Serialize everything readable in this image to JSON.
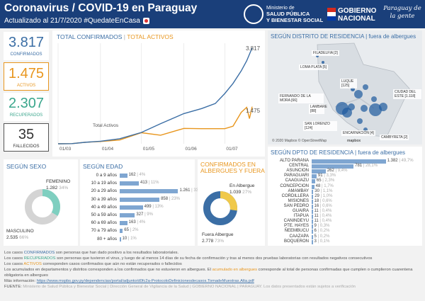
{
  "header": {
    "title": "Coronavirus / COVID-19 en Paraguay",
    "updated": "Actualizado al 21/7/2020",
    "hashtag": "#QuedateEnCasa",
    "ministry_small": "Ministerio de",
    "ministry": "SALUD PÚBLICA",
    "ministry2": "Y BIENESTAR SOCIAL",
    "gov": "GOBIERNO",
    "gov2": "NACIONAL",
    "slogan": "Paraguay de la gente",
    "flag_colors": [
      "#d52b1e",
      "#ffffff",
      "#0038a8"
    ]
  },
  "kpis": [
    {
      "value": "3.817",
      "label": "CONFIRMADOS",
      "color": "#3b6ea5"
    },
    {
      "value": "1.475",
      "label": "ACTIVOS",
      "color": "#e8961e"
    },
    {
      "value": "2.307",
      "label": "RECUPERADOS",
      "color": "#3aa68c"
    },
    {
      "value": "35",
      "label": "FALLECIDOS",
      "color": "#333333"
    }
  ],
  "timeline": {
    "title_a": "TOTAL CONFIRMADOS",
    "title_sep": " | ",
    "title_b": "TOTAL ACTIVOS",
    "series_active_label": "Total Activos",
    "end_confirmed": "3.817",
    "end_active": "1.475"
  },
  "chart_data": [
    {
      "type": "line",
      "title": "TOTAL CONFIRMADOS | TOTAL ACTIVOS",
      "x_ticks": [
        "01/03",
        "01/04",
        "01/05",
        "01/06",
        "01/07"
      ],
      "x_day": [
        0,
        31,
        61,
        92,
        122,
        142
      ],
      "xlim": [
        0,
        142
      ],
      "ylim": [
        0,
        4000
      ],
      "series": [
        {
          "name": "Total Activos",
          "color": "#e8961e",
          "x": [
            0,
            10,
            20,
            31,
            45,
            61,
            75,
            92,
            105,
            115,
            122,
            128,
            134,
            138,
            140,
            142
          ],
          "values": [
            0,
            5,
            60,
            90,
            150,
            440,
            340,
            610,
            600,
            600,
            600,
            700,
            1250,
            1450,
            1000,
            1475
          ]
        },
        {
          "name": "",
          "color": "#3b6ea5",
          "x": [
            0,
            10,
            20,
            31,
            45,
            61,
            75,
            92,
            105,
            115,
            122,
            128,
            134,
            138,
            142
          ],
          "values": [
            0,
            5,
            60,
            100,
            200,
            450,
            800,
            1200,
            1400,
            1600,
            2000,
            2400,
            2900,
            3300,
            3817
          ]
        }
      ]
    },
    {
      "type": "pie",
      "title": "SEGÚN SEXO",
      "slices": [
        {
          "label": "FEMENINO",
          "value": 1282,
          "pct": "34%",
          "color": "#7fcfc0"
        },
        {
          "label": "MASCULINO",
          "value": 2535,
          "pct": "66%",
          "color": "#d4d4d4"
        }
      ]
    },
    {
      "type": "bar",
      "title": "SEGÚN EDAD",
      "categories": [
        "0 a 9 años",
        "10 a 19 años",
        "20 a 29 años",
        "30 a 39 años",
        "40 a 49 años",
        "50 a 59 años",
        "60 a 69 años",
        "70 a 79 años",
        "80 + años"
      ],
      "values": [
        162,
        413,
        1261,
        858,
        499,
        327,
        163,
        65,
        10
      ],
      "labels": [
        "162",
        "413",
        "1.261",
        "858",
        "499",
        "327",
        "163",
        "65",
        "10"
      ],
      "pcts": [
        "4%",
        "11%",
        "33%",
        "23%",
        "13%",
        "9%",
        "4%",
        "2%",
        "1%"
      ],
      "xlim": [
        0,
        1300
      ]
    },
    {
      "type": "pie",
      "title": "CONFIRMADOS EN ALBERGUES Y FUERA",
      "slices": [
        {
          "label": "En Albergue",
          "value": 1039,
          "pct": "27%",
          "color": "#f0c94a"
        },
        {
          "label": "Fuera Albergue",
          "value": 2778,
          "pct": "73%",
          "color": "#3b6ea5"
        }
      ]
    },
    {
      "type": "bar",
      "title": "SEGÚN DPTO DE RESIDENCIA | fuera de albergues",
      "categories": [
        "ALTO PARANA",
        "CENTRAL",
        "ASUNCION",
        "PARAGUARI",
        "CAAGUAZU",
        "CONCEPCION",
        "AMAMBAY",
        "CORDILLERA",
        "MISIONES",
        "SAN PEDRO",
        "GUAIRA",
        "ITAPUA",
        "CANINDEYU",
        "PTE. HAYES",
        "ÑEEMBUCU",
        "CAAZAPA",
        "BOQUERON"
      ],
      "values": [
        1382,
        781,
        262,
        91,
        65,
        48,
        30,
        29,
        18,
        16,
        11,
        11,
        11,
        9,
        6,
        5,
        3
      ],
      "labels": [
        "1.382",
        "781",
        "262",
        "91",
        "65",
        "48",
        "30",
        "29",
        "18",
        "16",
        "11",
        "11",
        "11",
        "9",
        "6",
        "5",
        "3"
      ],
      "pcts": [
        "49,7%",
        "28,1%",
        "9,4%",
        "3,3%",
        "2,3%",
        "1,7%",
        "1,1%",
        "1,0%",
        "0,6%",
        "0,6%",
        "0,4%",
        "0,4%",
        "0,4%",
        "0,3%",
        "0,2%",
        "0,2%",
        "0,1%"
      ],
      "xlim": [
        0,
        1400
      ]
    }
  ],
  "sexo": {
    "title": "SEGÚN SEXO",
    "fem_label": "FEMENINO",
    "fem_value": "1.282",
    "fem_pct": "34%",
    "masc_label": "MASCULINO",
    "masc_value": "2.535",
    "masc_pct": "66%"
  },
  "edad": {
    "title": "SEGÚN EDAD"
  },
  "albergue": {
    "title_a": "CONFIRMADOS EN",
    "title_b": "ALBERGUES Y FUERA",
    "in_label": "En Albergue",
    "in_value": "1.039",
    "in_pct": "27%",
    "out_label": "Fuera Albergue",
    "out_value": "2.778",
    "out_pct": "73%"
  },
  "map": {
    "title_a": "SEGÚN DISTRITO DE RESIDENCIA",
    "title_b": " | fuera de albergues",
    "credit": "© 2020 Mapbox © OpenStreetMap",
    "mapbox": "mapbox",
    "labels": [
      "FILADELFIA [2]",
      "LOMA PLATA [5]",
      "LUQUE [125]",
      "FERNANDO DE LA MORA [66]",
      "LAMBARE [88]",
      "SAN LORENZO [124]",
      "CIUDAD DEL ESTE [1.118]",
      "ENCARNACIÓN [4]",
      "CAMBYRETA [2]"
    ]
  },
  "dpto": {
    "title_a": "SEGÚN DPTO DE RESIDENCIA",
    "title_b": " | fuera de albergues"
  },
  "notes": {
    "n1a": "Los casos ",
    "n1b": "CONFIRMADOS",
    "n1c": " son personas que han dado positivo a los resultados laboratoriales.",
    "n2a": "Los casos ",
    "n2b": "RECUPERADOS",
    "n2c": " son personas que tuvieron el virus, y luego de al menos 14 días de su fecha de confirmación y tras al menos dos pruebas laboratorias con resultados negativos consecutivos",
    "n3a": "Los casos ",
    "n3b": "ACTIVOS",
    "n3c": " corresponden casos confirmados que aún no están recuperados o fallecidos",
    "n4a": "Los acumulados en departamentos y distritos corresponden a los confirmados que no estuvieron en albergues. El ",
    "n4b": "acumulado en albergues",
    "n4c": " corresponde al total de personas confirmadas que cumplen o cumplieron cuarentena obligatoria en albergues",
    "n5a": "Más información: ",
    "n5b": "https://www.mspbs.gov.py/dependencias/portal/adjunto/d0fc2a-ProtocoloDefinicionesdecasos.TomadeMuestras.Alta.pdf",
    "n6a": "FUENTE: ",
    "n6b": "Ministerio de Salud Pública y Bienestar Social | Dirección General de Vigilancia de la Salud | GOBIERNO NACIONAL | PARAGUAY. Los datos presentados están sujetos a verificación"
  }
}
